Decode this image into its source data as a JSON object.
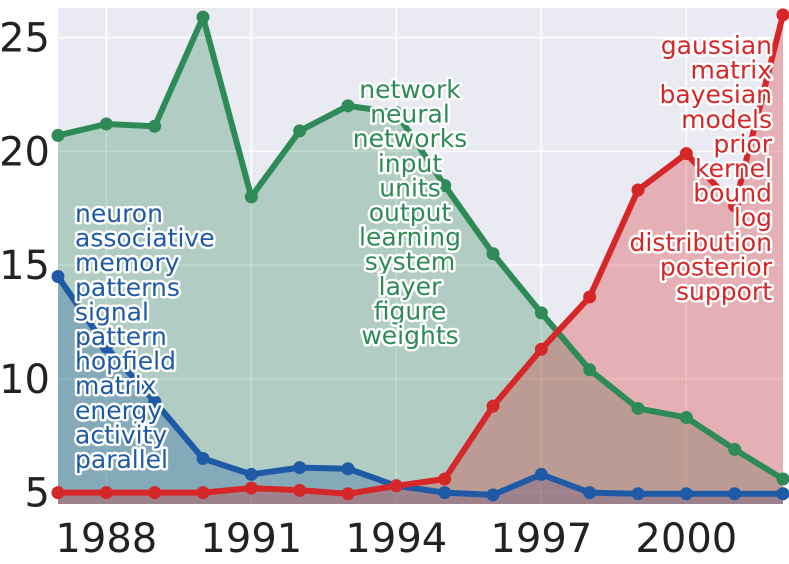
{
  "chart_data": {
    "type": "area",
    "title": "",
    "xlabel": "",
    "ylabel": "",
    "xlim": [
      1987,
      2002
    ],
    "ylim": [
      4.5,
      26.3
    ],
    "grid": true,
    "x": [
      1987,
      1988,
      1989,
      1990,
      1991,
      1992,
      1993,
      1994,
      1995,
      1996,
      1997,
      1998,
      1999,
      2000,
      2001,
      2002
    ],
    "xticks": [
      "1988",
      "1991",
      "1994",
      "1997",
      "2000"
    ],
    "yticks": [
      "5",
      "10",
      "15",
      "20",
      "25"
    ],
    "series": [
      {
        "color": "#2e8b57",
        "values": [
          20.7,
          21.2,
          21.1,
          25.9,
          18.0,
          20.9,
          22.0,
          21.7,
          18.5,
          15.5,
          12.9,
          10.4,
          8.7,
          8.3,
          6.9,
          5.6
        ],
        "words": [
          "network",
          "neural",
          "networks",
          "input",
          "units",
          "output",
          "learning",
          "system",
          "layer",
          "figure",
          "weights"
        ]
      },
      {
        "color": "#1f5aa6",
        "values": [
          14.5,
          11.4,
          9.0,
          6.5,
          5.8,
          6.1,
          6.05,
          5.3,
          5.0,
          4.9,
          5.8,
          5.0,
          4.95,
          4.95,
          4.95,
          4.95
        ],
        "words": [
          "neuron",
          "associative",
          "memory",
          "patterns",
          "signal",
          "pattern",
          "hopfield",
          "matrix",
          "energy",
          "activity",
          "parallel"
        ]
      },
      {
        "color": "#d62728",
        "values": [
          5.0,
          5.0,
          5.0,
          5.0,
          5.2,
          5.1,
          4.95,
          5.3,
          5.6,
          8.8,
          11.3,
          13.6,
          18.3,
          19.9,
          17.6,
          26.0
        ],
        "words": [
          "gaussian",
          "matrix",
          "bayesian",
          "models",
          "prior",
          "kernel",
          "bound",
          "log",
          "distribution",
          "posterior",
          "support"
        ]
      }
    ]
  }
}
